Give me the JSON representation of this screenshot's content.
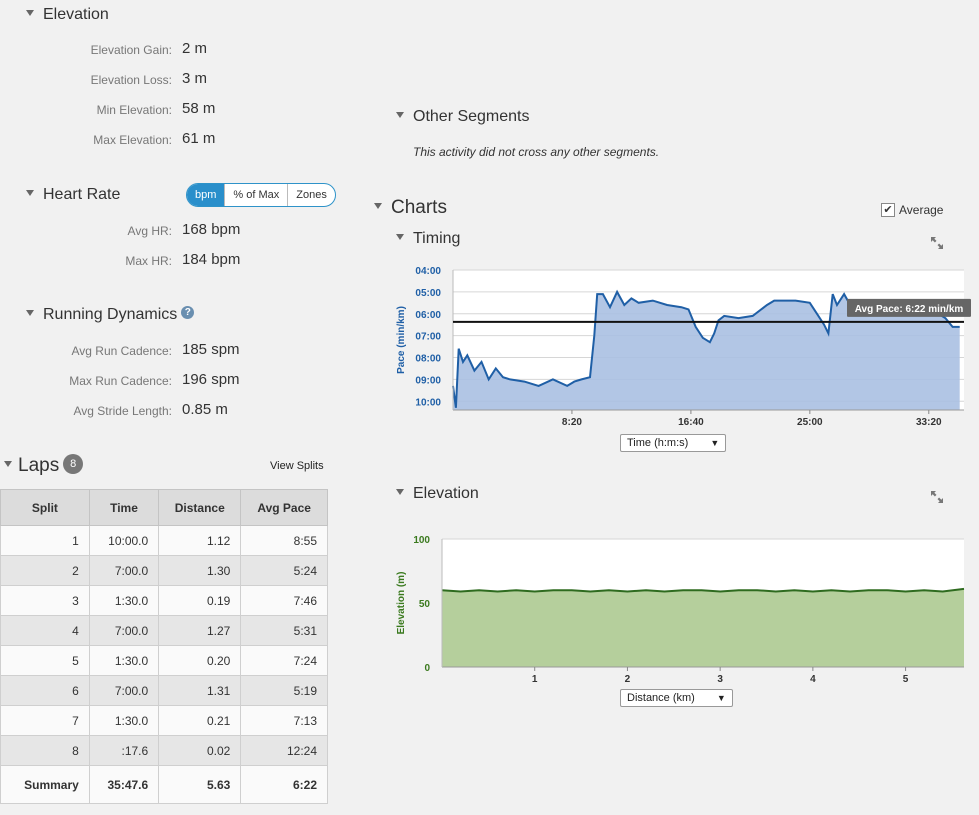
{
  "elevation": {
    "title": "Elevation",
    "rows": [
      {
        "label": "Elevation Gain:",
        "value": "2 m"
      },
      {
        "label": "Elevation Loss:",
        "value": "3 m"
      },
      {
        "label": "Min Elevation:",
        "value": "58 m"
      },
      {
        "label": "Max Elevation:",
        "value": "61 m"
      }
    ]
  },
  "heart_rate": {
    "title": "Heart Rate",
    "toggle": [
      "bpm",
      "% of Max",
      "Zones"
    ],
    "active": "bpm",
    "rows": [
      {
        "label": "Avg HR:",
        "value": "168 bpm"
      },
      {
        "label": "Max HR:",
        "value": "184 bpm"
      }
    ]
  },
  "running_dynamics": {
    "title": "Running Dynamics",
    "help": "?",
    "rows": [
      {
        "label": "Avg Run Cadence:",
        "value": "185 spm"
      },
      {
        "label": "Max Run Cadence:",
        "value": "196 spm"
      },
      {
        "label": "Avg Stride Length:",
        "value": "0.85 m"
      }
    ]
  },
  "laps": {
    "title": "Laps",
    "count": "8",
    "view_splits": "View Splits",
    "columns": [
      "Split",
      "Time",
      "Distance",
      "Avg Pace"
    ],
    "rows": [
      [
        "1",
        "10:00.0",
        "1.12",
        "8:55"
      ],
      [
        "2",
        "7:00.0",
        "1.30",
        "5:24"
      ],
      [
        "3",
        "1:30.0",
        "0.19",
        "7:46"
      ],
      [
        "4",
        "7:00.0",
        "1.27",
        "5:31"
      ],
      [
        "5",
        "1:30.0",
        "0.20",
        "7:24"
      ],
      [
        "6",
        "7:00.0",
        "1.31",
        "5:19"
      ],
      [
        "7",
        "1:30.0",
        "0.21",
        "7:13"
      ],
      [
        "8",
        ":17.6",
        "0.02",
        "12:24"
      ]
    ],
    "summary": [
      "Summary",
      "35:47.6",
      "5.63",
      "6:22"
    ]
  },
  "other_segments": {
    "title": "Other Segments",
    "message": "This activity did not cross any other segments."
  },
  "charts": {
    "title": "Charts",
    "average_label": "Average",
    "average_checked": true
  },
  "timing_chart": {
    "title": "Timing",
    "dropdown": "Time (h:m:s)",
    "avg_pace_label": "Avg Pace: 6:22 min/km",
    "colors": {
      "line": "#1f5fa6",
      "fill": "#aac0e2",
      "avg": "#111111",
      "axis_text": "#1f5fa6"
    }
  },
  "elevation_chart": {
    "title": "Elevation",
    "dropdown": "Distance (km)",
    "colors": {
      "line": "#2e6b1f",
      "fill": "#b5cf9c",
      "axis_text": "#3b7a1f"
    }
  },
  "chart_data": [
    {
      "type": "area",
      "ylabel": "Pace (min/km)",
      "xlabel": "",
      "y_unit": "min/km",
      "y_inverted": true,
      "yticks": [
        "04:00",
        "05:00",
        "06:00",
        "07:00",
        "08:00",
        "09:00",
        "10:00"
      ],
      "xticks": [
        "8:20",
        "16:40",
        "25:00",
        "33:20"
      ],
      "xtick_minutes": [
        8.333,
        16.667,
        25,
        33.333
      ],
      "xlim_minutes": [
        0,
        35.8
      ],
      "ylim": [
        4,
        10.4
      ],
      "average_pace": 6.37,
      "x_minutes": [
        0,
        0.2,
        0.4,
        0.7,
        1.0,
        1.5,
        2,
        2.5,
        3,
        3.5,
        4,
        5,
        6,
        7,
        8,
        8.5,
        9,
        9.6,
        9.9,
        10.1,
        10.5,
        11,
        11.5,
        12,
        12.5,
        13,
        14,
        15,
        16,
        16.5,
        17,
        17.5,
        18,
        18.3,
        18.6,
        19,
        20,
        21,
        22,
        22.5,
        23,
        24,
        25,
        25.5,
        26,
        26.3,
        26.6,
        26.9,
        27.4,
        28,
        29,
        30,
        31,
        32,
        33,
        34,
        34.5,
        35,
        35.5
      ],
      "y_pace": [
        9.3,
        10.3,
        7.6,
        8.2,
        7.9,
        8.6,
        8.2,
        9.0,
        8.5,
        8.9,
        9.0,
        9.1,
        9.3,
        9.0,
        9.3,
        9.1,
        9.0,
        8.9,
        7.0,
        5.1,
        5.1,
        5.7,
        5.0,
        5.6,
        5.3,
        5.5,
        5.4,
        5.6,
        5.7,
        5.8,
        6.6,
        7.1,
        7.3,
        6.9,
        6.3,
        6.1,
        6.2,
        6.1,
        5.6,
        5.4,
        5.4,
        5.4,
        5.5,
        6.0,
        6.5,
        6.9,
        5.1,
        5.6,
        5.1,
        5.8,
        5.9,
        5.9,
        5.9,
        5.9,
        5.9,
        6.0,
        6.2,
        6.6,
        6.6
      ],
      "series": [
        {
          "name": "Avg Pace: 6:22 min/km"
        }
      ]
    },
    {
      "type": "area",
      "ylabel": "Elevation (m)",
      "xlabel": "",
      "xticks": [
        "1",
        "2",
        "3",
        "4",
        "5"
      ],
      "xtick_km": [
        1,
        2,
        3,
        4,
        5
      ],
      "xlim_km": [
        0,
        5.63
      ],
      "ylim": [
        0,
        100
      ],
      "yticks": [
        "0",
        "50",
        "100"
      ],
      "x_km": [
        0,
        0.2,
        0.4,
        0.6,
        0.8,
        1.0,
        1.2,
        1.4,
        1.6,
        1.8,
        2.0,
        2.2,
        2.4,
        2.6,
        2.8,
        3.0,
        3.2,
        3.4,
        3.6,
        3.8,
        4.0,
        4.2,
        4.4,
        4.6,
        4.8,
        5.0,
        5.2,
        5.4,
        5.63
      ],
      "y_m": [
        60,
        59,
        60,
        59,
        60,
        59,
        60,
        60,
        59,
        60,
        59,
        60,
        59,
        60,
        60,
        59,
        60,
        60,
        59,
        60,
        59,
        60,
        59,
        60,
        60,
        59,
        60,
        59,
        61
      ]
    }
  ]
}
